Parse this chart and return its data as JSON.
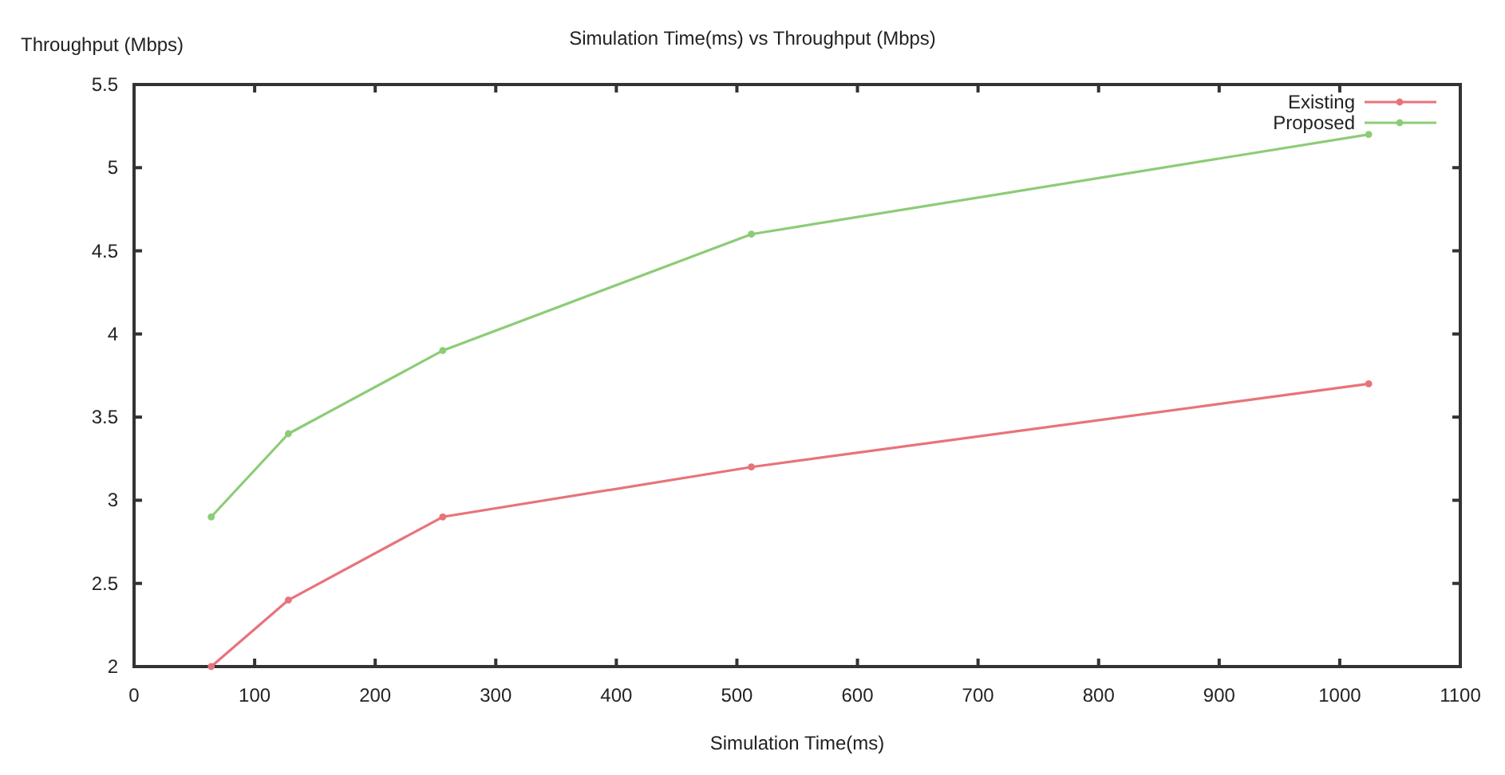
{
  "chart_data": {
    "type": "line",
    "title": "Simulation Time(ms) vs Throughput (Mbps)",
    "xlabel": "Simulation Time(ms)",
    "ylabel": "Throughput (Mbps)",
    "x": [
      64,
      128,
      256,
      512,
      1024
    ],
    "series": [
      {
        "name": "Existing",
        "color": "#e8737b",
        "values": [
          2,
          2.4,
          2.9,
          3.2,
          3.7
        ]
      },
      {
        "name": "Proposed",
        "color": "#8ccc76",
        "values": [
          2.9,
          3.4,
          3.9,
          4.6,
          5.2
        ]
      }
    ],
    "xlim": [
      0,
      1100
    ],
    "xticks": [
      0,
      100,
      200,
      300,
      400,
      500,
      600,
      700,
      800,
      900,
      1000,
      1100
    ],
    "ylim": [
      2,
      5.5
    ],
    "yticks": [
      2,
      2.5,
      3,
      3.5,
      4,
      4.5,
      5,
      5.5
    ],
    "grid": false,
    "legend": "top right",
    "marker": "circle",
    "line_style": "solid"
  }
}
